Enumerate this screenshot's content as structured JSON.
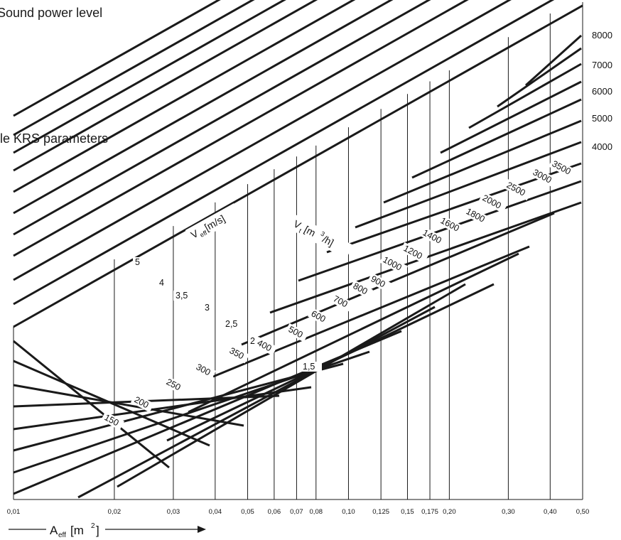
{
  "title": "Sound power level",
  "subtitle": "ille KRS parameters",
  "colors": {
    "lines": "#1a1a1a",
    "background": "#ffffff"
  },
  "chart_data": {
    "type": "nomogram",
    "x_axis": {
      "label_main": "A",
      "label_sub": "eff",
      "label_unit_open": "[m",
      "label_unit_exp": "2",
      "label_unit_close": "]",
      "scale": "log",
      "range": [
        0.01,
        0.5
      ],
      "ticks": [
        "0,01",
        "0,02",
        "0,03",
        "0,04",
        "0,05",
        "0,06",
        "0,07",
        "0,08",
        "0,10",
        "0,125",
        "0,15",
        "0,175",
        "0,20",
        "0,30",
        "0,40",
        "0,50"
      ],
      "tick_values": [
        0.01,
        0.02,
        0.03,
        0.04,
        0.05,
        0.06,
        0.07,
        0.08,
        0.1,
        0.125,
        0.15,
        0.175,
        0.2,
        0.3,
        0.4,
        0.5
      ]
    },
    "right_scale": {
      "ticks": [
        "8000",
        "7000",
        "6000",
        "5000",
        "4000"
      ],
      "tick_values": [
        8000,
        7000,
        6000,
        5000,
        4000
      ]
    },
    "veff_family": {
      "label_main": "V",
      "label_sub": "eff",
      "label_unit": " [m/s]",
      "values": [
        "5",
        "4",
        "3,5",
        "3",
        "2,5",
        "2",
        "1,5"
      ],
      "numeric": [
        5,
        4,
        3.5,
        3,
        2.5,
        2,
        1.5
      ]
    },
    "vt_family": {
      "label_main": "V",
      "label_sub": "t",
      "label_unit_open": " [m",
      "label_unit_exp": "3",
      "label_unit_close": "/h]",
      "values": [
        "150",
        "200",
        "250",
        "300",
        "350",
        "400",
        "500",
        "600",
        "700",
        "800",
        "900",
        "1000",
        "1200",
        "1400",
        "1600",
        "1800",
        "2000",
        "2500",
        "3000",
        "3500"
      ],
      "numeric": [
        150,
        200,
        250,
        300,
        350,
        400,
        500,
        600,
        700,
        800,
        900,
        1000,
        1200,
        1400,
        1600,
        1800,
        2000,
        2500,
        3000,
        3500
      ]
    }
  }
}
